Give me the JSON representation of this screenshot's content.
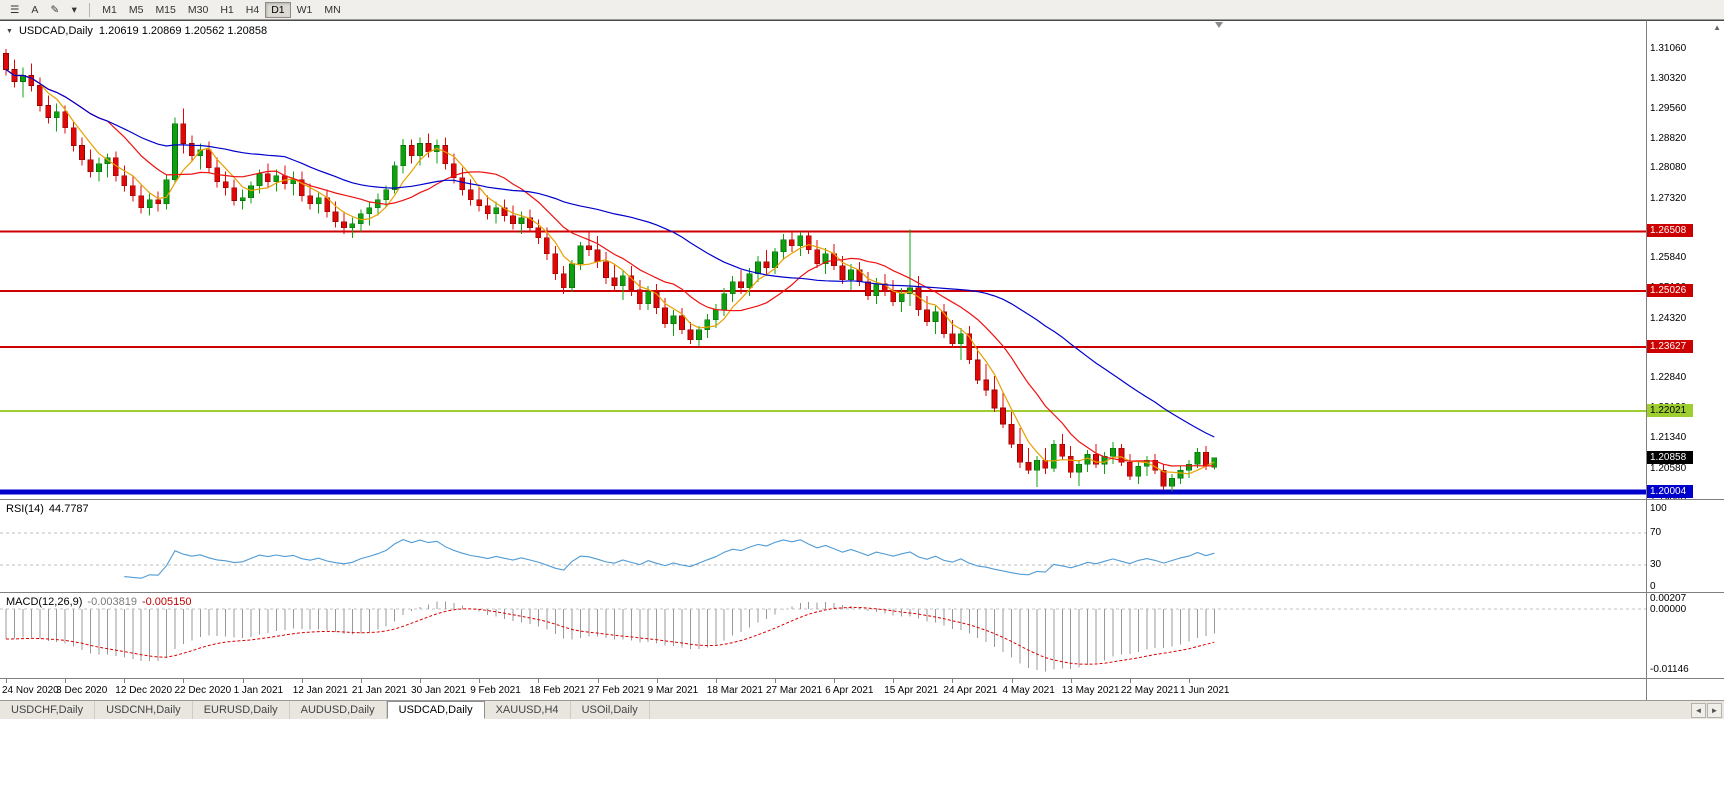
{
  "toolbar": {
    "icons": [
      {
        "name": "symbols-menu-icon",
        "glyph": "☰"
      },
      {
        "name": "cursor-a-icon",
        "glyph": "A"
      },
      {
        "name": "draw-tool-icon",
        "glyph": "✎"
      },
      {
        "name": "dropdown-icon",
        "glyph": "▾"
      }
    ],
    "timeframes": [
      "M1",
      "M5",
      "M15",
      "M30",
      "H1",
      "H4",
      "D1",
      "W1",
      "MN"
    ],
    "active_timeframe": "D1"
  },
  "chart": {
    "title": "USDCAD,Daily",
    "ohlc": "1.20619 1.20869 1.20562 1.20858",
    "collapse_glyph": "▼",
    "scroll_up_glyph": "▲"
  },
  "indicators": {
    "rsi": {
      "name": "RSI(14)",
      "value": "44.7787",
      "axis_labels": [
        "100",
        "70",
        "30",
        "0"
      ],
      "levels": [
        70,
        30
      ],
      "line_color": "#4F9BD5",
      "level_color": "#bdbdbd"
    },
    "macd": {
      "name": "MACD(12,26,9)",
      "value_main": "-0.003819",
      "value_signal": "-0.005150",
      "axis_labels": [
        "0.00207",
        "0.00000",
        "-0.01146"
      ],
      "histogram_color": "#999999",
      "signal_color": "#dd0000",
      "zero_color": "#c0c0c0"
    }
  },
  "chart_data": {
    "type": "candlestick",
    "symbol": "USDCAD",
    "timeframe": "Daily",
    "last_ohlc": {
      "open": "1.20619",
      "high": "1.20869",
      "low": "1.20562",
      "close": "1.20858"
    },
    "current_price": {
      "label": "1.20858",
      "price": 1.20858,
      "bg": "#000000",
      "text_color": "#ffffff"
    },
    "y_ticks": [
      "1.31060",
      "1.30320",
      "1.29560",
      "1.28820",
      "1.28080",
      "1.27320",
      "1.26580",
      "1.25840",
      "1.25100",
      "1.24320",
      "1.23580",
      "1.22840",
      "1.22100",
      "1.21340",
      "1.20580",
      "1.19840"
    ],
    "x_labels": [
      "24 Nov 2020",
      "3 Dec 2020",
      "12 Dec 2020",
      "22 Dec 2020",
      "1 Jan 2021",
      "12 Jan 2021",
      "21 Jan 2021",
      "30 Jan 2021",
      "9 Feb 2021",
      "18 Feb 2021",
      "27 Feb 2021",
      "9 Mar 2021",
      "18 Mar 2021",
      "27 Mar 2021",
      "6 Apr 2021",
      "15 Apr 2021",
      "24 Apr 2021",
      "4 May 2021",
      "13 May 2021",
      "22 May 2021",
      "1 Jun 2021"
    ],
    "candles_per_label": 7,
    "horizontal_lines": [
      {
        "label": "1.26508",
        "price": 1.26508,
        "color": "#cc0000",
        "width": 2,
        "text_color": "#ffffff"
      },
      {
        "label": "1.25026",
        "price": 1.25026,
        "color": "#cc0000",
        "width": 2,
        "text_color": "#ffffff"
      },
      {
        "label": "1.23627",
        "price": 1.23627,
        "color": "#cc0000",
        "width": 2,
        "text_color": "#ffffff"
      },
      {
        "label": "1.22021",
        "price": 1.22021,
        "color": "#9fce30",
        "width": 2,
        "text_color": "#000000"
      },
      {
        "label": "1.20004",
        "price": 1.20004,
        "color": "#0000cc",
        "width": 5,
        "text_color": "#ffffff"
      }
    ],
    "moving_averages": [
      {
        "name": "ma-slow",
        "color": "#0000cd"
      },
      {
        "name": "ma-medium",
        "color": "#ee1111"
      },
      {
        "name": "ma-fast",
        "color": "#e8a000"
      }
    ],
    "colors": {
      "up": "#0fa00f",
      "up_edge": "#0a6e0a",
      "down": "#e00707",
      "down_edge": "#8f0505",
      "background": "#ffffff"
    },
    "candles": [
      [
        1.3095,
        1.3106,
        1.304,
        1.3055
      ],
      [
        1.3055,
        1.308,
        1.301,
        1.3025
      ],
      [
        1.3025,
        1.306,
        1.2985,
        1.304
      ],
      [
        1.304,
        1.307,
        1.3,
        1.3015
      ],
      [
        1.3015,
        1.3035,
        1.295,
        1.2965
      ],
      [
        1.2965,
        1.299,
        1.292,
        1.2935
      ],
      [
        1.2935,
        1.297,
        1.29,
        1.295
      ],
      [
        1.295,
        1.2965,
        1.2895,
        1.291
      ],
      [
        1.291,
        1.2925,
        1.285,
        1.2865
      ],
      [
        1.2865,
        1.2885,
        1.2815,
        1.283
      ],
      [
        1.283,
        1.2855,
        1.2785,
        1.28
      ],
      [
        1.28,
        1.2835,
        1.2775,
        1.282
      ],
      [
        1.282,
        1.2845,
        1.2785,
        1.2835
      ],
      [
        1.2835,
        1.285,
        1.2775,
        1.279
      ],
      [
        1.279,
        1.2815,
        1.275,
        1.2765
      ],
      [
        1.2765,
        1.279,
        1.2725,
        1.274
      ],
      [
        1.274,
        1.2765,
        1.2695,
        1.271
      ],
      [
        1.271,
        1.2745,
        1.269,
        1.273
      ],
      [
        1.273,
        1.275,
        1.27,
        1.272
      ],
      [
        1.272,
        1.279,
        1.2705,
        1.278
      ],
      [
        1.278,
        1.2935,
        1.277,
        1.292
      ],
      [
        1.292,
        1.2957,
        1.2845,
        1.287
      ],
      [
        1.287,
        1.289,
        1.2825,
        1.284
      ],
      [
        1.284,
        1.287,
        1.2805,
        1.2855
      ],
      [
        1.2855,
        1.2875,
        1.2795,
        1.281
      ],
      [
        1.281,
        1.2835,
        1.276,
        1.2775
      ],
      [
        1.2775,
        1.28,
        1.274,
        1.276
      ],
      [
        1.276,
        1.278,
        1.2715,
        1.2728
      ],
      [
        1.2728,
        1.2755,
        1.2705,
        1.2735
      ],
      [
        1.2735,
        1.2775,
        1.272,
        1.2765
      ],
      [
        1.2765,
        1.2805,
        1.2745,
        1.2795
      ],
      [
        1.2795,
        1.282,
        1.276,
        1.2775
      ],
      [
        1.2775,
        1.2805,
        1.275,
        1.279
      ],
      [
        1.279,
        1.2815,
        1.2755,
        1.277
      ],
      [
        1.277,
        1.28,
        1.274,
        1.278
      ],
      [
        1.278,
        1.28,
        1.2725,
        1.274
      ],
      [
        1.274,
        1.277,
        1.2705,
        1.272
      ],
      [
        1.272,
        1.275,
        1.2695,
        1.2735
      ],
      [
        1.2735,
        1.2755,
        1.2685,
        1.27
      ],
      [
        1.27,
        1.2725,
        1.266,
        1.2675
      ],
      [
        1.2675,
        1.27,
        1.2645,
        1.266
      ],
      [
        1.266,
        1.2685,
        1.2635,
        1.267
      ],
      [
        1.267,
        1.2705,
        1.265,
        1.2695
      ],
      [
        1.2695,
        1.2725,
        1.2665,
        1.271
      ],
      [
        1.271,
        1.2745,
        1.269,
        1.273
      ],
      [
        1.273,
        1.2765,
        1.271,
        1.2755
      ],
      [
        1.2755,
        1.2825,
        1.2745,
        1.2815
      ],
      [
        1.2815,
        1.2881,
        1.2795,
        1.2865
      ],
      [
        1.2865,
        1.288,
        1.282,
        1.284
      ],
      [
        1.284,
        1.2885,
        1.2815,
        1.287
      ],
      [
        1.287,
        1.2895,
        1.2835,
        1.285
      ],
      [
        1.285,
        1.288,
        1.282,
        1.2865
      ],
      [
        1.2865,
        1.2885,
        1.2805,
        1.282
      ],
      [
        1.282,
        1.2845,
        1.277,
        1.2785
      ],
      [
        1.2785,
        1.281,
        1.274,
        1.2755
      ],
      [
        1.2755,
        1.278,
        1.2715,
        1.273
      ],
      [
        1.273,
        1.276,
        1.27,
        1.2715
      ],
      [
        1.2715,
        1.274,
        1.268,
        1.2695
      ],
      [
        1.2695,
        1.2725,
        1.267,
        1.271
      ],
      [
        1.271,
        1.273,
        1.2675,
        1.269
      ],
      [
        1.269,
        1.2715,
        1.2655,
        1.267
      ],
      [
        1.267,
        1.27,
        1.2645,
        1.2685
      ],
      [
        1.2685,
        1.2705,
        1.265,
        1.266
      ],
      [
        1.266,
        1.268,
        1.262,
        1.2635
      ],
      [
        1.2635,
        1.266,
        1.258,
        1.2595
      ],
      [
        1.2595,
        1.2615,
        1.253,
        1.2545
      ],
      [
        1.2545,
        1.2565,
        1.2495,
        1.251
      ],
      [
        1.251,
        1.258,
        1.25,
        1.257
      ],
      [
        1.257,
        1.2625,
        1.2555,
        1.2615
      ],
      [
        1.2615,
        1.265,
        1.259,
        1.2605
      ],
      [
        1.2605,
        1.264,
        1.256,
        1.2575
      ],
      [
        1.2575,
        1.26,
        1.252,
        1.2535
      ],
      [
        1.2535,
        1.257,
        1.25,
        1.2515
      ],
      [
        1.2515,
        1.2555,
        1.248,
        1.254
      ],
      [
        1.254,
        1.2565,
        1.249,
        1.2505
      ],
      [
        1.2505,
        1.253,
        1.2455,
        1.247
      ],
      [
        1.247,
        1.2515,
        1.2455,
        1.25
      ],
      [
        1.25,
        1.252,
        1.2445,
        1.246
      ],
      [
        1.246,
        1.2485,
        1.241,
        1.242
      ],
      [
        1.242,
        1.2455,
        1.239,
        1.244
      ],
      [
        1.244,
        1.246,
        1.2395,
        1.2405
      ],
      [
        1.2405,
        1.2425,
        1.237,
        1.238
      ],
      [
        1.238,
        1.2415,
        1.2363,
        1.2405
      ],
      [
        1.2405,
        1.2445,
        1.2385,
        1.243
      ],
      [
        1.243,
        1.247,
        1.241,
        1.2455
      ],
      [
        1.2455,
        1.251,
        1.244,
        1.2495
      ],
      [
        1.2495,
        1.254,
        1.2475,
        1.2525
      ],
      [
        1.2525,
        1.2555,
        1.2495,
        1.251
      ],
      [
        1.251,
        1.256,
        1.249,
        1.2545
      ],
      [
        1.2545,
        1.259,
        1.2525,
        1.2575
      ],
      [
        1.2575,
        1.2605,
        1.2545,
        1.256
      ],
      [
        1.256,
        1.261,
        1.2545,
        1.26
      ],
      [
        1.26,
        1.2645,
        1.258,
        1.263
      ],
      [
        1.263,
        1.2652,
        1.26,
        1.2615
      ],
      [
        1.2615,
        1.265,
        1.259,
        1.264
      ],
      [
        1.264,
        1.2651,
        1.2595,
        1.2605
      ],
      [
        1.2605,
        1.263,
        1.256,
        1.257
      ],
      [
        1.257,
        1.261,
        1.2545,
        1.2595
      ],
      [
        1.2595,
        1.262,
        1.2555,
        1.2565
      ],
      [
        1.2565,
        1.259,
        1.252,
        1.253
      ],
      [
        1.253,
        1.257,
        1.2505,
        1.2555
      ],
      [
        1.2555,
        1.2575,
        1.2515,
        1.2525
      ],
      [
        1.2525,
        1.255,
        1.248,
        1.249
      ],
      [
        1.249,
        1.2535,
        1.247,
        1.252
      ],
      [
        1.252,
        1.2545,
        1.249,
        1.25
      ],
      [
        1.25,
        1.253,
        1.2465,
        1.2475
      ],
      [
        1.2475,
        1.251,
        1.245,
        1.2495
      ],
      [
        1.2495,
        1.2655,
        1.2465,
        1.251
      ],
      [
        1.251,
        1.254,
        1.244,
        1.2455
      ],
      [
        1.2455,
        1.249,
        1.2415,
        1.2425
      ],
      [
        1.2425,
        1.2465,
        1.2395,
        1.245
      ],
      [
        1.245,
        1.247,
        1.2385,
        1.2395
      ],
      [
        1.2395,
        1.243,
        1.236,
        1.237
      ],
      [
        1.237,
        1.241,
        1.233,
        1.2395
      ],
      [
        1.2395,
        1.2415,
        1.232,
        1.233
      ],
      [
        1.233,
        1.236,
        1.227,
        1.228
      ],
      [
        1.228,
        1.232,
        1.224,
        1.2255
      ],
      [
        1.2255,
        1.229,
        1.22,
        1.221
      ],
      [
        1.221,
        1.225,
        1.216,
        1.217
      ],
      [
        1.217,
        1.22,
        1.211,
        1.212
      ],
      [
        1.212,
        1.216,
        1.206,
        1.2075
      ],
      [
        1.2075,
        1.211,
        1.2045,
        1.2055
      ],
      [
        1.2055,
        1.209,
        1.2013,
        1.208
      ],
      [
        1.208,
        1.211,
        1.2045,
        1.206
      ],
      [
        1.206,
        1.213,
        1.205,
        1.212
      ],
      [
        1.212,
        1.2145,
        1.208,
        1.209
      ],
      [
        1.209,
        1.2115,
        1.2035,
        1.205
      ],
      [
        1.205,
        1.208,
        1.2015,
        1.207
      ],
      [
        1.207,
        1.2105,
        1.205,
        1.2095
      ],
      [
        1.2095,
        1.212,
        1.206,
        1.207
      ],
      [
        1.207,
        1.21,
        1.2045,
        1.209
      ],
      [
        1.209,
        1.2125,
        1.207,
        1.211
      ],
      [
        1.211,
        1.212,
        1.2065,
        1.2075
      ],
      [
        1.2075,
        1.2095,
        1.203,
        1.204
      ],
      [
        1.204,
        1.2075,
        1.202,
        1.2065
      ],
      [
        1.2065,
        1.209,
        1.204,
        1.208
      ],
      [
        1.208,
        1.2095,
        1.2045,
        1.2055
      ],
      [
        1.2055,
        1.207,
        1.2005,
        1.2015
      ],
      [
        1.2015,
        1.2045,
        1.2002,
        1.2035
      ],
      [
        1.2035,
        1.2065,
        1.202,
        1.2055
      ],
      [
        1.2055,
        1.208,
        1.2035,
        1.207
      ],
      [
        1.207,
        1.211,
        1.206,
        1.21
      ],
      [
        1.21,
        1.2115,
        1.2055,
        1.2065
      ],
      [
        1.20619,
        1.20869,
        1.20562,
        1.20858
      ]
    ]
  },
  "tabs": {
    "items": [
      {
        "label": "USDCHF,Daily"
      },
      {
        "label": "USDCNH,Daily"
      },
      {
        "label": "EURUSD,Daily"
      },
      {
        "label": "AUDUSD,Daily"
      },
      {
        "label": "USDCAD,Daily"
      },
      {
        "label": "XAUUSD,H4"
      },
      {
        "label": "USOil,Daily"
      }
    ],
    "active": "USDCAD,Daily",
    "scroll_left_glyph": "◄",
    "scroll_right_glyph": "►"
  }
}
